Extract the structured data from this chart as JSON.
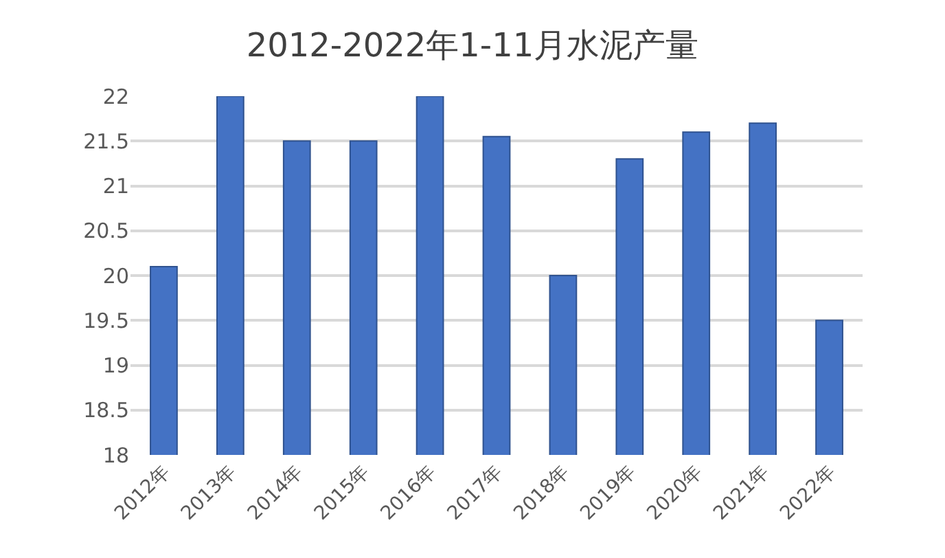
{
  "chart_data": {
    "type": "bar",
    "title": "2012-2022年1-11月水泥产量",
    "categories": [
      "2012年",
      "2013年",
      "2014年",
      "2015年",
      "2016年",
      "2017年",
      "2018年",
      "2019年",
      "2020年",
      "2021年",
      "2022年"
    ],
    "values": [
      20.1,
      22.0,
      21.5,
      21.5,
      22.0,
      21.55,
      20.0,
      21.3,
      21.6,
      21.7,
      19.5
    ],
    "color": "#4472c4",
    "ylim": [
      18,
      22
    ],
    "yticks": [
      18,
      18.5,
      19,
      19.5,
      20,
      20.5,
      21,
      21.5,
      22
    ],
    "grid": "y",
    "legend": false
  }
}
